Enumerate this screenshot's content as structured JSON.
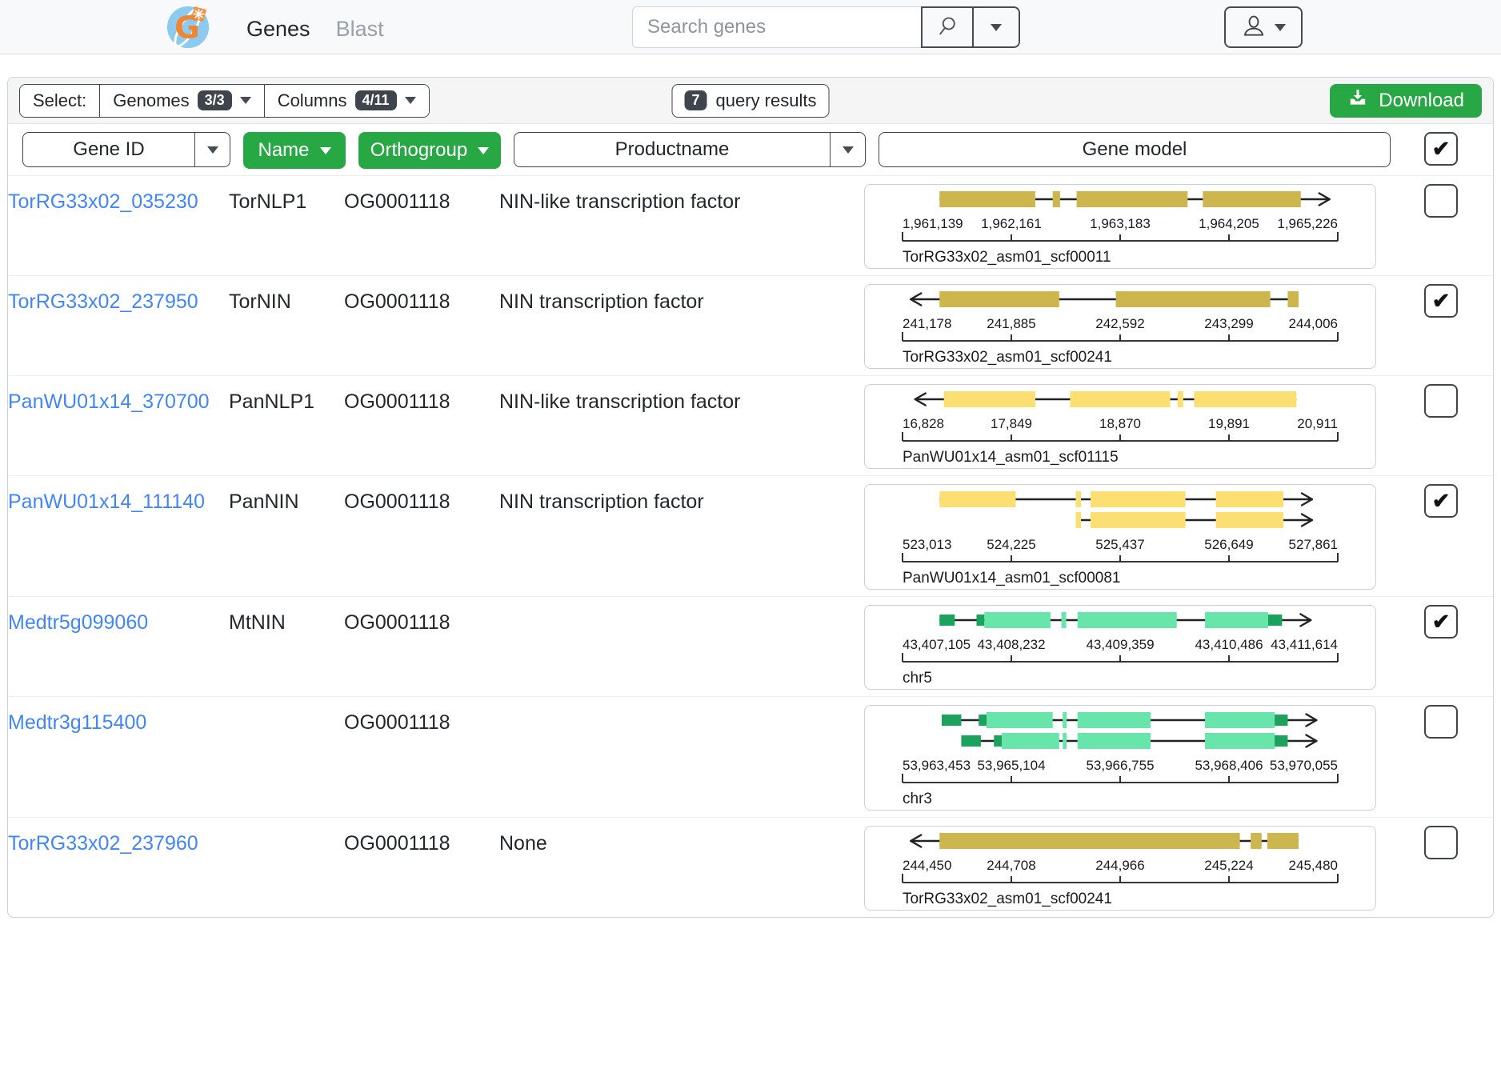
{
  "navbar": {
    "tabs": [
      {
        "label": "Genes"
      },
      {
        "label": "Blast"
      }
    ],
    "search": {
      "placeholder": "Search genes"
    }
  },
  "toolbar": {
    "select_label": "Select:",
    "genomes": {
      "label": "Genomes",
      "badge": "3/3"
    },
    "columns": {
      "label": "Columns",
      "badge": "4/11"
    },
    "results": {
      "count": "7",
      "label": "query results"
    },
    "download_label": "Download"
  },
  "header": {
    "gene_id": "Gene ID",
    "name": "Name",
    "orthogroup": "Orthogroup",
    "productname": "Productname",
    "gene_model": "Gene model"
  },
  "glyphs": {
    "check": "✔"
  },
  "palettes": {
    "olive": {
      "exon": "#cdb64d",
      "utr": "#cdb64d"
    },
    "yellow": {
      "exon": "#fbdf73",
      "utr": "#fbdf73"
    },
    "green": {
      "exon": "#67e5aa",
      "utr": "#1ba35d"
    }
  },
  "rows": [
    {
      "gene_id": "TorRG33x02_035230",
      "name": "TorNLP1",
      "orthogroup": "OG0001118",
      "productname": "NIN-like transcription factor",
      "checked": false,
      "model": {
        "palette": "olive",
        "strand": "right",
        "scaffold": "TorRG33x02_asm01_scf00011",
        "ticks": [
          "1,961,139",
          "1,962,161",
          "1,963,183",
          "1,964,205",
          "1,965,226"
        ],
        "transcripts": [
          [
            [
              0.085,
              0.305,
              "e"
            ],
            [
              0.345,
              0.362,
              "e"
            ],
            [
              0.4,
              0.655,
              "e"
            ],
            [
              0.69,
              0.915,
              "e"
            ]
          ]
        ]
      }
    },
    {
      "gene_id": "TorRG33x02_237950",
      "name": "TorNIN",
      "orthogroup": "OG0001118",
      "productname": "NIN transcription factor",
      "checked": true,
      "model": {
        "palette": "olive",
        "strand": "left",
        "scaffold": "TorRG33x02_asm01_scf00241",
        "ticks": [
          "241,178",
          "241,885",
          "242,592",
          "243,299",
          "244,006"
        ],
        "transcripts": [
          [
            [
              0.085,
              0.36,
              "e"
            ],
            [
              0.49,
              0.845,
              "e"
            ],
            [
              0.885,
              0.91,
              "e"
            ]
          ]
        ]
      }
    },
    {
      "gene_id": "PanWU01x14_370700",
      "name": "PanNLP1",
      "orthogroup": "OG0001118",
      "productname": "NIN-like transcription factor",
      "checked": false,
      "model": {
        "palette": "yellow",
        "strand": "left",
        "scaffold": "PanWU01x14_asm01_scf01115",
        "ticks": [
          "16,828",
          "17,849",
          "18,870",
          "19,891",
          "20,911"
        ],
        "transcripts": [
          [
            [
              0.095,
              0.305,
              "e"
            ],
            [
              0.385,
              0.615,
              "e"
            ],
            [
              0.632,
              0.645,
              "e"
            ],
            [
              0.67,
              0.905,
              "e"
            ]
          ]
        ]
      }
    },
    {
      "gene_id": "PanWU01x14_111140",
      "name": "PanNIN",
      "orthogroup": "OG0001118",
      "productname": "NIN transcription factor",
      "checked": true,
      "model": {
        "palette": "yellow",
        "strand": "right",
        "scaffold": "PanWU01x14_asm01_scf00081",
        "ticks": [
          "523,013",
          "524,225",
          "525,437",
          "526,649",
          "527,861"
        ],
        "transcripts": [
          [
            [
              0.085,
              0.26,
              "e"
            ],
            [
              0.398,
              0.41,
              "e"
            ],
            [
              0.432,
              0.65,
              "e"
            ],
            [
              0.72,
              0.875,
              "e"
            ]
          ],
          [
            [
              0.398,
              0.41,
              "e"
            ],
            [
              0.432,
              0.65,
              "e"
            ],
            [
              0.72,
              0.875,
              "e"
            ]
          ]
        ]
      }
    },
    {
      "gene_id": "Medtr5g099060",
      "name": "MtNIN",
      "orthogroup": "OG0001118",
      "productname": "",
      "checked": true,
      "model": {
        "palette": "green",
        "strand": "right",
        "scaffold": "chr5",
        "ticks": [
          "43,407,105",
          "43,408,232",
          "43,409,359",
          "43,410,486",
          "43,411,614"
        ],
        "transcripts": [
          [
            [
              0.085,
              0.12,
              "u"
            ],
            [
              0.17,
              0.188,
              "u"
            ],
            [
              0.188,
              0.34,
              "e"
            ],
            [
              0.365,
              0.376,
              "e"
            ],
            [
              0.402,
              0.63,
              "e"
            ],
            [
              0.695,
              0.84,
              "e"
            ],
            [
              0.84,
              0.872,
              "u"
            ]
          ]
        ]
      }
    },
    {
      "gene_id": "Medtr3g115400",
      "name": "",
      "orthogroup": "OG0001118",
      "productname": "",
      "checked": false,
      "model": {
        "palette": "green",
        "strand": "right",
        "scaffold": "chr3",
        "ticks": [
          "53,963,453",
          "53,965,104",
          "53,966,755",
          "53,968,406",
          "53,970,055"
        ],
        "transcripts": [
          [
            [
              0.09,
              0.135,
              "u"
            ],
            [
              0.175,
              0.193,
              "u"
            ],
            [
              0.193,
              0.345,
              "e"
            ],
            [
              0.368,
              0.377,
              "e"
            ],
            [
              0.402,
              0.57,
              "e"
            ],
            [
              0.695,
              0.855,
              "e"
            ],
            [
              0.855,
              0.885,
              "u"
            ]
          ],
          [
            [
              0.135,
              0.18,
              "u"
            ],
            [
              0.21,
              0.228,
              "u"
            ],
            [
              0.228,
              0.36,
              "e"
            ],
            [
              0.368,
              0.377,
              "e"
            ],
            [
              0.402,
              0.57,
              "e"
            ],
            [
              0.695,
              0.855,
              "e"
            ],
            [
              0.855,
              0.885,
              "u"
            ]
          ]
        ]
      }
    },
    {
      "gene_id": "TorRG33x02_237960",
      "name": "",
      "orthogroup": "OG0001118",
      "productname": "None",
      "checked": false,
      "model": {
        "palette": "olive",
        "strand": "left",
        "scaffold": "TorRG33x02_asm01_scf00241",
        "ticks": [
          "244,450",
          "244,708",
          "244,966",
          "245,224",
          "245,480"
        ],
        "transcripts": [
          [
            [
              0.085,
              0.775,
              "e"
            ],
            [
              0.8,
              0.825,
              "e"
            ],
            [
              0.838,
              0.91,
              "e"
            ]
          ]
        ]
      }
    }
  ]
}
